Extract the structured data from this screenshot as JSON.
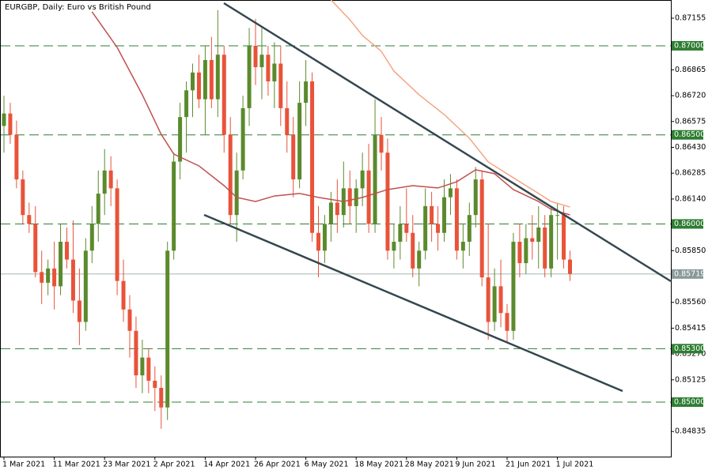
{
  "chart_data": {
    "type": "candlestick",
    "title": "EURGBP, Daily:  Euro vs British Pound",
    "categories": [
      "1 Mar 2021",
      null,
      null,
      null,
      null,
      null,
      null,
      null,
      "11 Mar 2021",
      null,
      null,
      null,
      null,
      null,
      null,
      null,
      "23 Mar 2021",
      null,
      null,
      null,
      null,
      null,
      null,
      null,
      "2 Apr 2021",
      null,
      null,
      null,
      null,
      null,
      null,
      null,
      "14 Apr 2021",
      null,
      null,
      null,
      null,
      null,
      null,
      null,
      "26 Apr 2021",
      null,
      null,
      null,
      null,
      null,
      null,
      null,
      "6 May 2021",
      null,
      null,
      null,
      null,
      null,
      null,
      null,
      "18 May 2021",
      null,
      null,
      null,
      null,
      null,
      null,
      null,
      "28 May 2021",
      null,
      null,
      null,
      null,
      null,
      null,
      null,
      "9 Jun 2021",
      null,
      null,
      null,
      null,
      null,
      null,
      null,
      "21 Jun 2021",
      null,
      null,
      null,
      null,
      null,
      null,
      null,
      "1 Jul 2021",
      null,
      null
    ],
    "open": [
      0.8655,
      0.8662,
      0.865,
      0.8625,
      0.8605,
      0.86,
      0.8573,
      0.8567,
      0.8575,
      0.8565,
      0.859,
      0.858,
      0.8557,
      0.8545,
      0.8585,
      0.86,
      0.8617,
      0.863,
      0.862,
      0.8568,
      0.8552,
      0.854,
      0.8515,
      0.8525,
      0.8512,
      0.8508,
      0.8497,
      0.8585,
      0.8635,
      0.866,
      0.8675,
      0.8685,
      0.867,
      0.8692,
      0.867,
      0.8695,
      0.865,
      0.8605,
      0.863,
      0.8665,
      0.87,
      0.8688,
      0.8695,
      0.868,
      0.869,
      0.8665,
      0.865,
      0.8625,
      0.8668,
      0.868,
      0.8595,
      0.8585,
      0.86,
      0.8612,
      0.8605,
      0.862,
      0.861,
      0.862,
      0.863,
      0.86,
      0.865,
      0.864,
      0.8585,
      0.859,
      0.86,
      0.8595,
      0.8575,
      0.8585,
      0.861,
      0.86,
      0.8595,
      0.8615,
      0.862,
      0.8585,
      0.859,
      0.8605,
      0.8625,
      0.857,
      0.8545,
      0.8565,
      0.855,
      0.854,
      0.859,
      0.8578,
      0.8592,
      0.859,
      0.8598,
      0.8575,
      0.8605,
      0.8605,
      0.858
    ],
    "high": [
      0.8672,
      0.8668,
      0.8658,
      0.863,
      0.8612,
      0.861,
      0.8585,
      0.858,
      0.859,
      0.86,
      0.8598,
      0.8602,
      0.8575,
      0.8592,
      0.861,
      0.863,
      0.8642,
      0.8638,
      0.8625,
      0.858,
      0.856,
      0.8548,
      0.8535,
      0.853,
      0.852,
      0.8515,
      0.859,
      0.864,
      0.8668,
      0.868,
      0.869,
      0.8695,
      0.87,
      0.8705,
      0.872,
      0.87,
      0.866,
      0.864,
      0.8672,
      0.871,
      0.8715,
      0.871,
      0.87,
      0.8702,
      0.87,
      0.868,
      0.866,
      0.868,
      0.8692,
      0.8685,
      0.861,
      0.8605,
      0.8618,
      0.8625,
      0.8635,
      0.863,
      0.8625,
      0.864,
      0.8645,
      0.867,
      0.866,
      0.8648,
      0.86,
      0.861,
      0.862,
      0.8605,
      0.859,
      0.862,
      0.8618,
      0.861,
      0.8625,
      0.8628,
      0.8625,
      0.86,
      0.8612,
      0.8632,
      0.863,
      0.86,
      0.8575,
      0.858,
      0.8555,
      0.8595,
      0.86,
      0.86,
      0.8605,
      0.861,
      0.8605,
      0.861,
      0.8612,
      0.861,
      0.8585
    ],
    "low": [
      0.864,
      0.8645,
      0.862,
      0.86,
      0.8595,
      0.857,
      0.8555,
      0.856,
      0.8552,
      0.856,
      0.8575,
      0.855,
      0.8532,
      0.854,
      0.8578,
      0.859,
      0.8605,
      0.861,
      0.856,
      0.8545,
      0.8525,
      0.8508,
      0.8505,
      0.8505,
      0.8495,
      0.8485,
      0.849,
      0.858,
      0.8625,
      0.864,
      0.866,
      0.8665,
      0.865,
      0.8665,
      0.866,
      0.864,
      0.86,
      0.859,
      0.8625,
      0.8655,
      0.8678,
      0.867,
      0.8672,
      0.8665,
      0.8655,
      0.864,
      0.8615,
      0.862,
      0.8655,
      0.859,
      0.857,
      0.8578,
      0.859,
      0.8595,
      0.8598,
      0.86,
      0.8595,
      0.861,
      0.8595,
      0.8595,
      0.863,
      0.858,
      0.8575,
      0.858,
      0.859,
      0.857,
      0.8565,
      0.858,
      0.859,
      0.8585,
      0.859,
      0.8605,
      0.858,
      0.8575,
      0.8582,
      0.8598,
      0.8565,
      0.8535,
      0.854,
      0.8542,
      0.8533,
      0.8535,
      0.857,
      0.8572,
      0.858,
      0.8575,
      0.857,
      0.857,
      0.858,
      0.8575,
      0.8568
    ],
    "close": [
      0.8662,
      0.865,
      0.8625,
      0.8605,
      0.86,
      0.8573,
      0.8567,
      0.8575,
      0.8565,
      0.859,
      0.858,
      0.8557,
      0.8545,
      0.8585,
      0.86,
      0.8617,
      0.863,
      0.862,
      0.8568,
      0.8552,
      0.854,
      0.8515,
      0.8525,
      0.8512,
      0.8508,
      0.8497,
      0.8585,
      0.8635,
      0.866,
      0.8675,
      0.8685,
      0.867,
      0.8692,
      0.867,
      0.8695,
      0.865,
      0.8605,
      0.863,
      0.8665,
      0.87,
      0.8688,
      0.8695,
      0.868,
      0.869,
      0.8665,
      0.865,
      0.8625,
      0.8668,
      0.868,
      0.8595,
      0.8585,
      0.86,
      0.8612,
      0.8605,
      0.862,
      0.861,
      0.862,
      0.863,
      0.86,
      0.865,
      0.864,
      0.8585,
      0.859,
      0.86,
      0.8595,
      0.8575,
      0.8585,
      0.861,
      0.86,
      0.8595,
      0.8615,
      0.862,
      0.8585,
      0.859,
      0.8605,
      0.8625,
      0.857,
      0.8545,
      0.8565,
      0.855,
      0.854,
      0.859,
      0.8578,
      0.8592,
      0.859,
      0.8598,
      0.8575,
      0.8605,
      0.8605,
      0.858,
      0.8572
    ],
    "up_color": "#5b8a2d",
    "down_color": "#e8533a",
    "moving_averages": [
      {
        "color": "#c0504d",
        "x": [
          14,
          18,
          22,
          25,
          27,
          31,
          35,
          37,
          40,
          43,
          47,
          50,
          54,
          57,
          61,
          65,
          69,
          72,
          75,
          78,
          81,
          85,
          87,
          90
        ],
        "values": [
          0.87191,
          0.86991,
          0.86725,
          0.86503,
          0.86392,
          0.86326,
          0.86215,
          0.86149,
          0.86126,
          0.86157,
          0.86171,
          0.86149,
          0.86126,
          0.86149,
          0.86193,
          0.86215,
          0.86202,
          0.86237,
          0.86304,
          0.86282,
          0.86193,
          0.86126,
          0.86082,
          0.86051
        ]
      },
      {
        "color": "#f4a582",
        "x": [
          52,
          55,
          57,
          60,
          62,
          66,
          70,
          74,
          77,
          81,
          85,
          87,
          90
        ],
        "values": [
          0.87257,
          0.87146,
          0.87058,
          0.86969,
          0.86858,
          0.86725,
          0.86614,
          0.86481,
          0.86348,
          0.86259,
          0.86171,
          0.86126,
          0.86095
        ]
      }
    ],
    "ylim": [
      0.84694,
      0.87257
    ],
    "yticks": [
      0.87155,
      0.86865,
      {
        "value": 0.8672,
        "label": "0.86720"
      },
      0.86575,
      {
        "value": 0.8643,
        "label": "0.86430"
      },
      0.86285,
      {
        "value": 0.8614,
        "label": "0.86140"
      },
      {
        "value": 0.8585,
        "label": "0.85850"
      },
      {
        "value": 0.8556,
        "label": "0.85560"
      },
      0.85415,
      {
        "value": 0.8527,
        "label": "0.85270"
      },
      0.85125,
      0.84835
    ],
    "levels": [
      {
        "value": 0.87,
        "label": "0.87000"
      },
      {
        "value": 0.865,
        "label": "0.86500"
      },
      {
        "value": 0.86,
        "label": "0.86000"
      },
      {
        "value": 0.853,
        "label": "0.85300"
      },
      {
        "value": 0.85,
        "label": "0.85000"
      }
    ],
    "level_color": "#2e7d32",
    "current_price": 0.85719
  }
}
